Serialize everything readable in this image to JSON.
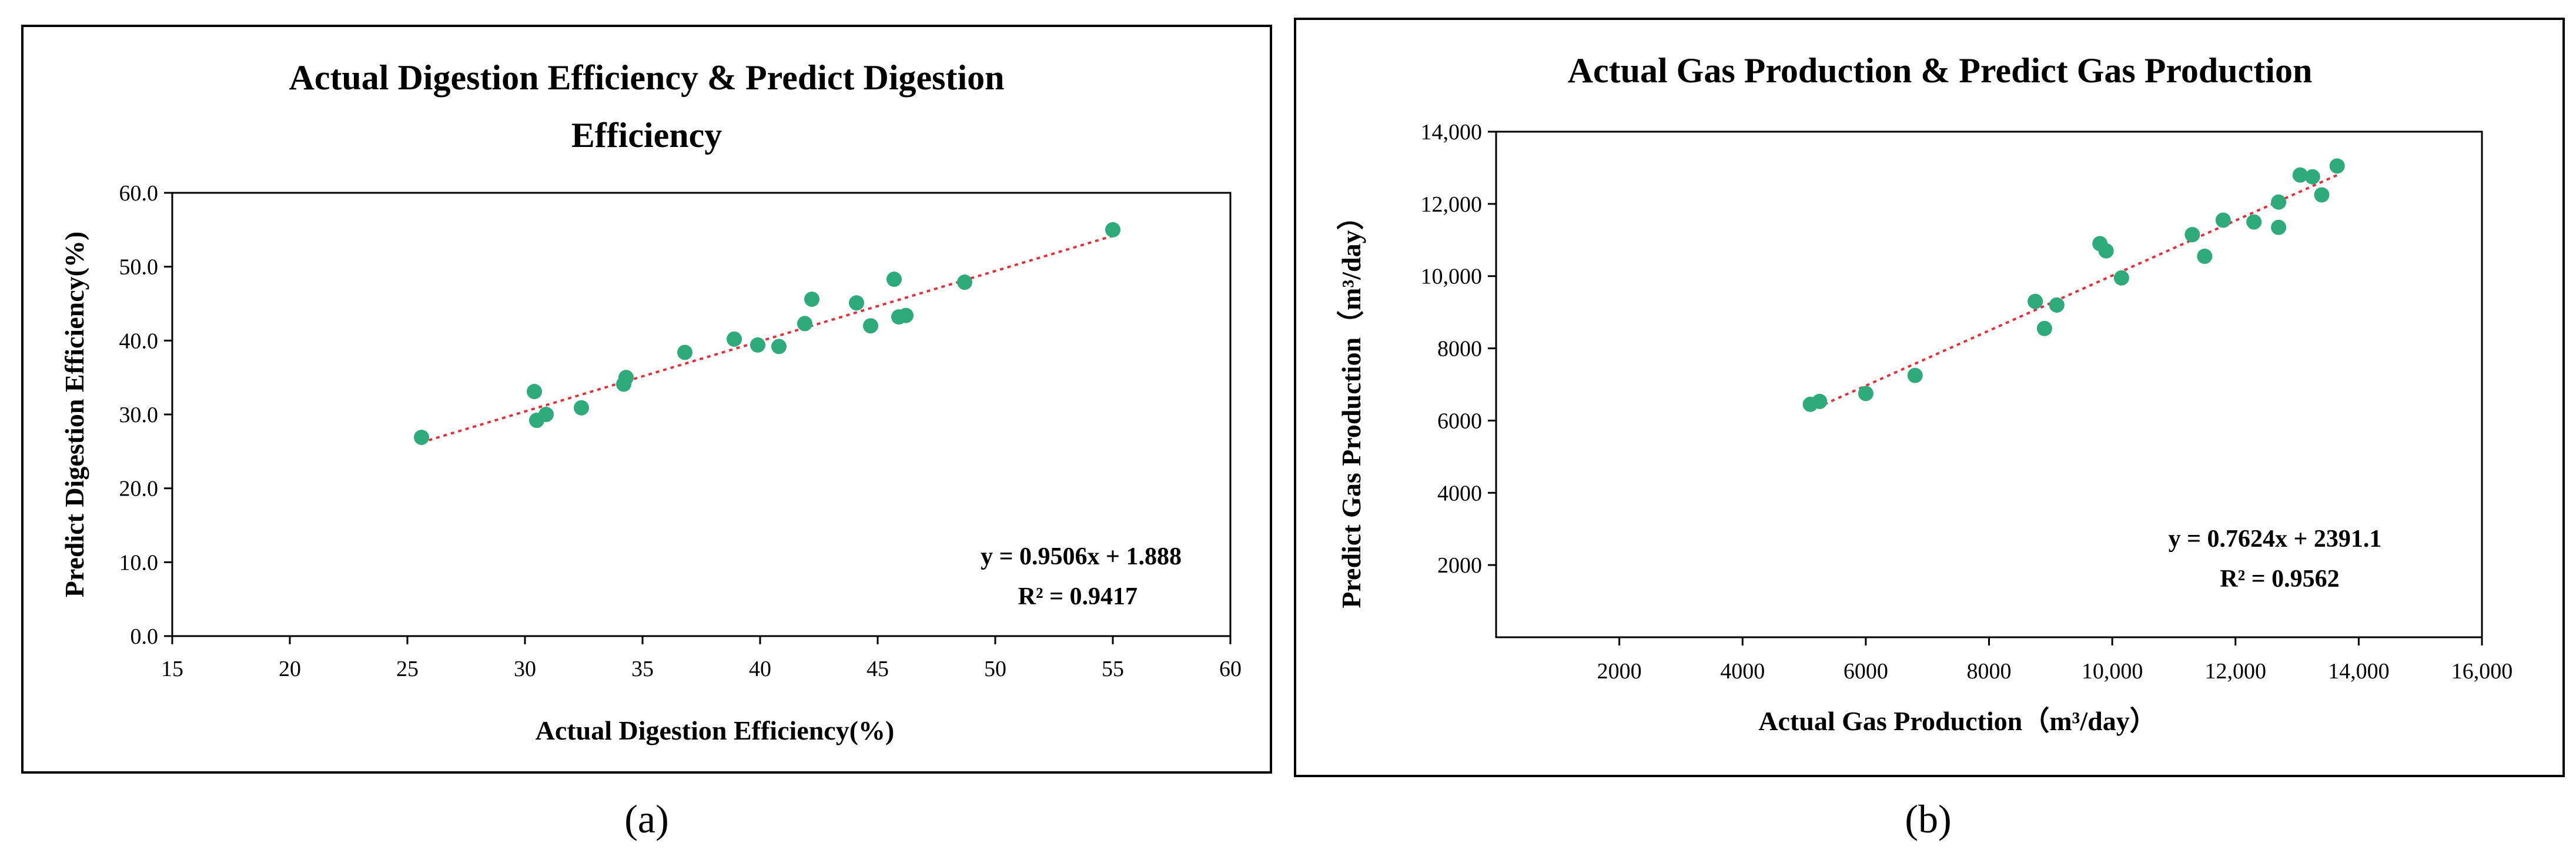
{
  "chart_data": [
    {
      "type": "scatter",
      "panel_label": "(a)",
      "title_lines": [
        "Actual Digestion  Efficiency & Predict Digestion",
        "Efficiency"
      ],
      "xlabel": "Actual Digestion  Efficiency(%)",
      "ylabel": "Predict Digestion  Efficiency(%)",
      "xlim": [
        15,
        60
      ],
      "ylim": [
        0,
        60
      ],
      "xticks": [
        15,
        20,
        25,
        30,
        35,
        40,
        45,
        50,
        55,
        60
      ],
      "yticks": [
        0,
        10,
        20,
        30,
        40,
        50,
        60
      ],
      "xtick_labels": [
        "15",
        "20",
        "25",
        "30",
        "35",
        "40",
        "45",
        "50",
        "55",
        "60"
      ],
      "ytick_labels": [
        "0.0",
        "10.0",
        "20.0",
        "30.0",
        "40.0",
        "50.0",
        "60.0"
      ],
      "point_color": "#2FAA7A",
      "trend_color": "#E0303A",
      "trendline": {
        "slope": 0.9506,
        "intercept": 1.888,
        "x_range": [
          25.6,
          55.0
        ]
      },
      "equation": "y = 0.9506x + 1.888",
      "r2": "R² = 0.9417",
      "points": [
        [
          25.6,
          26.9
        ],
        [
          30.4,
          33.1
        ],
        [
          30.5,
          29.2
        ],
        [
          30.9,
          30.0
        ],
        [
          32.4,
          30.9
        ],
        [
          34.2,
          34.1
        ],
        [
          34.3,
          35.0
        ],
        [
          36.8,
          38.4
        ],
        [
          38.9,
          40.2
        ],
        [
          39.9,
          39.4
        ],
        [
          40.8,
          39.2
        ],
        [
          41.9,
          42.3
        ],
        [
          42.2,
          45.6
        ],
        [
          44.1,
          45.1
        ],
        [
          44.7,
          42.0
        ],
        [
          45.7,
          48.3
        ],
        [
          45.9,
          43.2
        ],
        [
          46.2,
          43.4
        ],
        [
          48.7,
          47.9
        ],
        [
          55.0,
          55.0
        ]
      ]
    },
    {
      "type": "scatter",
      "panel_label": "(b)",
      "title_lines": [
        "Actual Gas Production  &  Predict Gas Production"
      ],
      "xlabel": "Actual Gas Production（m³/day）",
      "ylabel": "Predict Gas Production（m³/day）",
      "xlim": [
        0,
        16000
      ],
      "ylim": [
        0,
        14000
      ],
      "xticks": [
        2000,
        4000,
        6000,
        8000,
        10000,
        12000,
        14000,
        16000
      ],
      "yticks": [
        2000,
        4000,
        6000,
        8000,
        10000,
        12000,
        14000
      ],
      "xtick_labels": [
        "2000",
        "4000",
        "6000",
        "8000",
        "10,000",
        "12,000",
        "14,000",
        "16,000"
      ],
      "ytick_labels": [
        "2000",
        "4000",
        "6000",
        "8000",
        "10,000",
        "12,000",
        "14,000"
      ],
      "point_color": "#2FAA7A",
      "trend_color": "#E0303A",
      "trendline": {
        "slope": 0.7624,
        "intercept": 2391.1,
        "x_range": [
          5100,
          13700
        ]
      },
      "equation": "y = 0.7624x + 2391.1",
      "r2": "R² = 0.9562",
      "points": [
        [
          5100,
          6450
        ],
        [
          5250,
          6530
        ],
        [
          6000,
          6750
        ],
        [
          6800,
          7250
        ],
        [
          8750,
          9300
        ],
        [
          8900,
          8550
        ],
        [
          9100,
          9200
        ],
        [
          9800,
          10900
        ],
        [
          9900,
          10700
        ],
        [
          10150,
          9950
        ],
        [
          11300,
          11150
        ],
        [
          11500,
          10550
        ],
        [
          11800,
          11550
        ],
        [
          12300,
          11500
        ],
        [
          12700,
          12050
        ],
        [
          12700,
          11350
        ],
        [
          13050,
          12800
        ],
        [
          13250,
          12750
        ],
        [
          13400,
          12250
        ],
        [
          13650,
          13050
        ]
      ]
    }
  ]
}
